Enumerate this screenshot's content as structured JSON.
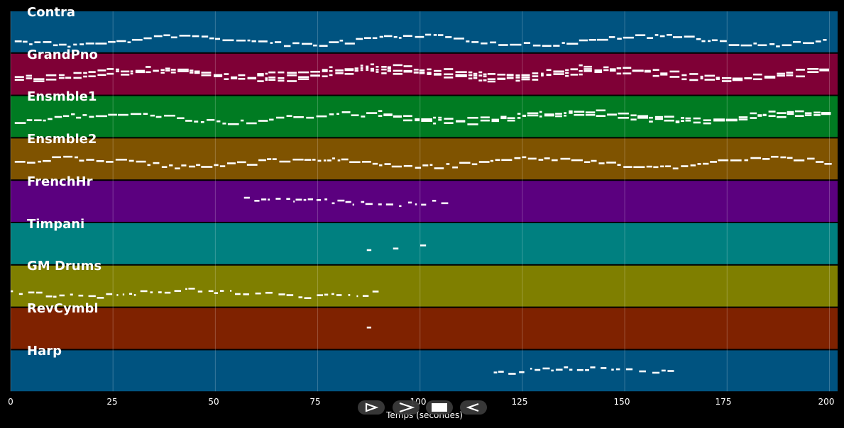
{
  "chart_data": {
    "type": "piano-roll",
    "xlabel": "Temps (secondes)",
    "xlim": [
      0,
      202
    ],
    "x_ticks": [
      0,
      25,
      50,
      75,
      100,
      125,
      150,
      175,
      200
    ],
    "tracks": [
      {
        "name": "Contra",
        "color": "#005380",
        "start": 1,
        "end": 199
      },
      {
        "name": "GrandPno",
        "color": "#7f0036",
        "start": 1,
        "end": 199
      },
      {
        "name": "Ensmble1",
        "color": "#007b22",
        "start": 1,
        "end": 199
      },
      {
        "name": "Ensmble2",
        "color": "#7f5300",
        "start": 1,
        "end": 199
      },
      {
        "name": "FrenchHr",
        "color": "#5b007f",
        "start": 57,
        "end": 106
      },
      {
        "name": "Timpani",
        "color": "#008080",
        "start": 87,
        "end": 102
      },
      {
        "name": "GM Drums",
        "color": "#7f7f00",
        "start": 0,
        "end": 89
      },
      {
        "name": "RevCymbl",
        "color": "#7f2200",
        "start": 87,
        "end": 89
      },
      {
        "name": "Harp",
        "color": "#005380",
        "start": 118,
        "end": 161
      }
    ]
  },
  "controls": [
    {
      "name": "play-button",
      "icon": "play-outline-icon"
    },
    {
      "name": "forward-button",
      "icon": "chevron-right-icon"
    },
    {
      "name": "stop-button",
      "icon": "stop-icon"
    },
    {
      "name": "back-button",
      "icon": "back-triangle-icon"
    }
  ]
}
